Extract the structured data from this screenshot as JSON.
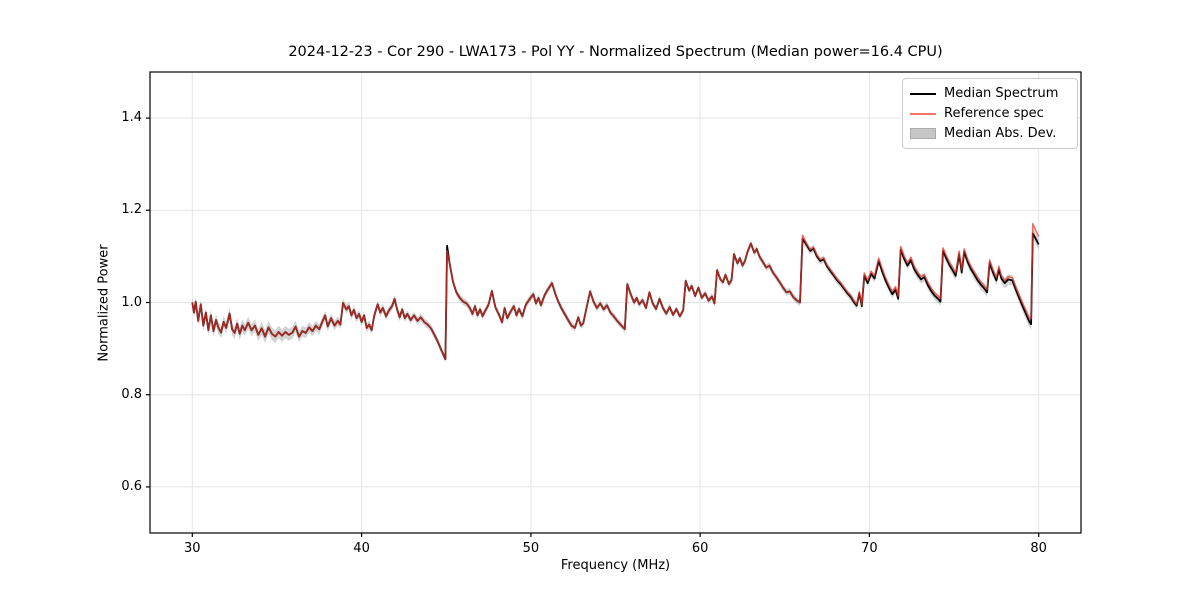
{
  "figure": {
    "background": "#ffffff"
  },
  "chart_data": {
    "type": "line",
    "title": "2024-12-23 - Cor 290 - LWA173 - Pol YY - Normalized Spectrum (Median power=16.4 CPU)",
    "xlabel": "Frequency (MHz)",
    "ylabel": "Normalized Power",
    "xlim": [
      27.5,
      82.5
    ],
    "ylim": [
      0.5,
      1.5
    ],
    "grid": true,
    "grid_color": "#e5e5e5",
    "legend_position": "upper right",
    "xticks": [
      [
        30,
        "30"
      ],
      [
        40,
        "40"
      ],
      [
        50,
        "50"
      ],
      [
        60,
        "60"
      ],
      [
        70,
        "70"
      ],
      [
        80,
        "80"
      ]
    ],
    "yticks": [
      [
        0.6,
        "0.6"
      ],
      [
        0.8,
        "0.8"
      ],
      [
        1.0,
        "1.0"
      ],
      [
        1.2,
        "1.2"
      ],
      [
        1.4,
        "1.4"
      ]
    ],
    "legend": [
      {
        "label": "Median Spectrum",
        "kind": "line",
        "color": "#000000"
      },
      {
        "label": "Reference spec",
        "kind": "line",
        "color": "#f4756d"
      },
      {
        "label": "Median Abs. Dev.",
        "kind": "patch",
        "color": "#c6c6c6"
      }
    ],
    "series_info": {
      "median_color": "#000000",
      "reference_color_rgba": "rgba(230,55,45,0.72)",
      "band_fill_rgba": "rgba(128,128,128,0.35)"
    },
    "points_format": [
      "freq_MHz",
      "median_power",
      "reference_minus_median"
    ],
    "points": [
      [
        30.0,
        1.0
      ],
      [
        30.1,
        0.978
      ],
      [
        30.2,
        1.002
      ],
      [
        30.35,
        0.96
      ],
      [
        30.5,
        0.996
      ],
      [
        30.65,
        0.95
      ],
      [
        30.8,
        0.978
      ],
      [
        30.95,
        0.94
      ],
      [
        31.1,
        0.972
      ],
      [
        31.25,
        0.938
      ],
      [
        31.4,
        0.962
      ],
      [
        31.55,
        0.944
      ],
      [
        31.7,
        0.935
      ],
      [
        31.85,
        0.958
      ],
      [
        32.0,
        0.945
      ],
      [
        32.2,
        0.976
      ],
      [
        32.35,
        0.942
      ],
      [
        32.5,
        0.934
      ],
      [
        32.65,
        0.954
      ],
      [
        32.8,
        0.932
      ],
      [
        32.95,
        0.95
      ],
      [
        33.1,
        0.94
      ],
      [
        33.3,
        0.956
      ],
      [
        33.5,
        0.94
      ],
      [
        33.7,
        0.95
      ],
      [
        33.9,
        0.93
      ],
      [
        34.1,
        0.944
      ],
      [
        34.3,
        0.926
      ],
      [
        34.5,
        0.946
      ],
      [
        34.7,
        0.932
      ],
      [
        34.9,
        0.926
      ],
      [
        35.1,
        0.936
      ],
      [
        35.3,
        0.928
      ],
      [
        35.5,
        0.936
      ],
      [
        35.7,
        0.93
      ],
      [
        35.9,
        0.934
      ],
      [
        36.1,
        0.948
      ],
      [
        36.3,
        0.926
      ],
      [
        36.5,
        0.938
      ],
      [
        36.7,
        0.934
      ],
      [
        36.9,
        0.946
      ],
      [
        37.1,
        0.938
      ],
      [
        37.3,
        0.95
      ],
      [
        37.5,
        0.942
      ],
      [
        37.7,
        0.96
      ],
      [
        37.85,
        0.972
      ],
      [
        38.0,
        0.948
      ],
      [
        38.2,
        0.966
      ],
      [
        38.4,
        0.95
      ],
      [
        38.6,
        0.96
      ],
      [
        38.75,
        0.952
      ],
      [
        38.9,
        0.999
      ],
      [
        39.1,
        0.985
      ],
      [
        39.25,
        0.992
      ],
      [
        39.4,
        0.972
      ],
      [
        39.55,
        0.984
      ],
      [
        39.7,
        0.966
      ],
      [
        39.85,
        0.975
      ],
      [
        40.0,
        0.958
      ],
      [
        40.15,
        0.972
      ],
      [
        40.3,
        0.945
      ],
      [
        40.45,
        0.952
      ],
      [
        40.6,
        0.94
      ],
      [
        40.75,
        0.972
      ],
      [
        40.95,
        0.996
      ],
      [
        41.1,
        0.978
      ],
      [
        41.25,
        0.988
      ],
      [
        41.45,
        0.97
      ],
      [
        41.6,
        0.982
      ],
      [
        41.8,
        0.992
      ],
      [
        41.95,
        1.008
      ],
      [
        42.1,
        0.985
      ],
      [
        42.25,
        0.968
      ],
      [
        42.4,
        0.985
      ],
      [
        42.55,
        0.966
      ],
      [
        42.7,
        0.975
      ],
      [
        42.9,
        0.962
      ],
      [
        43.1,
        0.972
      ],
      [
        43.3,
        0.96
      ],
      [
        43.5,
        0.968
      ],
      [
        43.7,
        0.958
      ],
      [
        43.9,
        0.952
      ],
      [
        44.1,
        0.944
      ],
      [
        44.3,
        0.93
      ],
      [
        44.5,
        0.915
      ],
      [
        44.7,
        0.898
      ],
      [
        44.95,
        0.877
      ],
      [
        45.05,
        1.123,
        -0.011
      ],
      [
        45.2,
        1.085
      ],
      [
        45.4,
        1.045
      ],
      [
        45.6,
        1.022
      ],
      [
        45.8,
        1.01
      ],
      [
        46.0,
        1.002
      ],
      [
        46.2,
        0.998
      ],
      [
        46.4,
        0.988
      ],
      [
        46.55,
        0.975
      ],
      [
        46.7,
        0.992
      ],
      [
        46.85,
        0.972
      ],
      [
        47.0,
        0.985
      ],
      [
        47.15,
        0.97
      ],
      [
        47.3,
        0.982
      ],
      [
        47.5,
        0.995
      ],
      [
        47.7,
        1.025
      ],
      [
        47.9,
        0.99
      ],
      [
        48.1,
        0.975
      ],
      [
        48.3,
        0.957
      ],
      [
        48.45,
        0.988
      ],
      [
        48.6,
        0.966
      ],
      [
        48.8,
        0.98
      ],
      [
        49.0,
        0.992
      ],
      [
        49.15,
        0.972
      ],
      [
        49.3,
        0.986
      ],
      [
        49.5,
        0.97
      ],
      [
        49.7,
        0.995
      ],
      [
        49.9,
        1.006
      ],
      [
        50.15,
        1.018
      ],
      [
        50.3,
        0.998
      ],
      [
        50.45,
        1.01
      ],
      [
        50.6,
        0.994
      ],
      [
        50.8,
        1.015
      ],
      [
        51.0,
        1.028
      ],
      [
        51.25,
        1.042
      ],
      [
        51.45,
        1.018
      ],
      [
        51.6,
        1.004
      ],
      [
        51.8,
        0.988
      ],
      [
        52.0,
        0.975
      ],
      [
        52.2,
        0.962
      ],
      [
        52.4,
        0.95
      ],
      [
        52.6,
        0.945
      ],
      [
        52.8,
        0.968
      ],
      [
        52.95,
        0.95
      ],
      [
        53.1,
        0.955
      ],
      [
        53.3,
        0.99
      ],
      [
        53.5,
        1.024
      ],
      [
        53.7,
        1.002
      ],
      [
        53.9,
        0.988
      ],
      [
        54.1,
        0.998
      ],
      [
        54.3,
        0.985
      ],
      [
        54.5,
        0.994
      ],
      [
        54.7,
        0.978
      ],
      [
        54.9,
        0.97
      ],
      [
        55.1,
        0.96
      ],
      [
        55.3,
        0.952
      ],
      [
        55.55,
        0.942
      ],
      [
        55.7,
        1.04
      ],
      [
        55.9,
        1.018
      ],
      [
        56.1,
        1.0
      ],
      [
        56.25,
        1.01
      ],
      [
        56.4,
        0.996
      ],
      [
        56.6,
        1.005
      ],
      [
        56.8,
        0.988
      ],
      [
        57.0,
        1.022
      ],
      [
        57.2,
        0.998
      ],
      [
        57.4,
        0.986
      ],
      [
        57.6,
        1.008
      ],
      [
        57.8,
        0.988
      ],
      [
        58.0,
        0.976
      ],
      [
        58.2,
        0.99
      ],
      [
        58.4,
        0.973
      ],
      [
        58.6,
        0.986
      ],
      [
        58.8,
        0.97
      ],
      [
        59.0,
        0.983
      ],
      [
        59.15,
        1.047
      ],
      [
        59.35,
        1.026
      ],
      [
        59.5,
        1.036
      ],
      [
        59.7,
        1.014
      ],
      [
        59.9,
        1.032
      ],
      [
        60.1,
        1.01
      ],
      [
        60.3,
        1.02
      ],
      [
        60.5,
        1.004
      ],
      [
        60.7,
        1.013
      ],
      [
        60.85,
        0.998
      ],
      [
        61.0,
        1.07
      ],
      [
        61.2,
        1.05
      ],
      [
        61.35,
        1.044
      ],
      [
        61.5,
        1.06
      ],
      [
        61.7,
        1.04
      ],
      [
        61.85,
        1.048
      ],
      [
        62.0,
        1.105
      ],
      [
        62.2,
        1.085
      ],
      [
        62.35,
        1.096
      ],
      [
        62.5,
        1.08
      ],
      [
        62.65,
        1.09
      ],
      [
        62.8,
        1.11
      ],
      [
        63.0,
        1.128
      ],
      [
        63.2,
        1.108
      ],
      [
        63.35,
        1.116
      ],
      [
        63.5,
        1.1
      ],
      [
        63.7,
        1.088
      ],
      [
        63.9,
        1.076
      ],
      [
        64.1,
        1.08
      ],
      [
        64.3,
        1.065
      ],
      [
        64.5,
        1.055
      ],
      [
        64.7,
        1.044
      ],
      [
        64.9,
        1.032
      ],
      [
        65.1,
        1.022
      ],
      [
        65.3,
        1.024
      ],
      [
        65.5,
        1.012
      ],
      [
        65.7,
        1.005
      ],
      [
        65.9,
        1.0
      ],
      [
        66.05,
        1.138,
        0.008
      ],
      [
        66.3,
        1.124,
        0.003
      ],
      [
        66.5,
        1.112,
        0.003
      ],
      [
        66.7,
        1.117,
        0.003
      ],
      [
        66.9,
        1.1,
        0.003
      ],
      [
        67.1,
        1.09,
        0.003
      ],
      [
        67.3,
        1.094,
        0.003
      ],
      [
        67.5,
        1.078,
        0.003
      ],
      [
        67.7,
        1.068,
        0.003
      ],
      [
        67.9,
        1.058,
        0.003
      ],
      [
        68.1,
        1.048,
        0.003
      ],
      [
        68.3,
        1.04,
        0.003
      ],
      [
        68.5,
        1.03,
        0.003
      ],
      [
        68.7,
        1.02,
        0.003
      ],
      [
        68.9,
        1.012,
        0.003
      ],
      [
        69.1,
        1.0,
        0.003
      ],
      [
        69.25,
        0.993,
        0.003
      ],
      [
        69.4,
        1.02,
        0.003
      ],
      [
        69.55,
        0.992,
        0.003
      ],
      [
        69.7,
        1.058,
        0.006
      ],
      [
        69.9,
        1.042,
        0.006
      ],
      [
        70.1,
        1.062,
        0.006
      ],
      [
        70.3,
        1.052,
        0.006
      ],
      [
        70.55,
        1.09,
        0.006
      ],
      [
        70.75,
        1.068,
        0.006
      ],
      [
        70.95,
        1.048,
        0.006
      ],
      [
        71.15,
        1.032,
        0.006
      ],
      [
        71.35,
        1.018,
        0.006
      ],
      [
        71.55,
        1.028,
        0.006
      ],
      [
        71.7,
        1.008,
        0.006
      ],
      [
        71.85,
        1.115,
        0.006
      ],
      [
        72.05,
        1.095,
        0.006
      ],
      [
        72.25,
        1.08,
        0.006
      ],
      [
        72.45,
        1.092,
        0.006
      ],
      [
        72.65,
        1.072,
        0.006
      ],
      [
        72.85,
        1.06,
        0.006
      ],
      [
        73.05,
        1.05,
        0.006
      ],
      [
        73.25,
        1.055,
        0.006
      ],
      [
        73.45,
        1.038,
        0.006
      ],
      [
        73.65,
        1.025,
        0.006
      ],
      [
        73.85,
        1.015,
        0.006
      ],
      [
        74.05,
        1.008,
        0.006
      ],
      [
        74.2,
        1.002,
        0.006
      ],
      [
        74.35,
        1.112,
        0.006
      ],
      [
        74.55,
        1.095,
        0.006
      ],
      [
        74.75,
        1.08,
        0.006
      ],
      [
        74.95,
        1.068,
        0.006
      ],
      [
        75.1,
        1.058,
        0.006
      ],
      [
        75.3,
        1.105,
        0.006
      ],
      [
        75.45,
        1.065,
        0.006
      ],
      [
        75.6,
        1.11,
        0.006
      ],
      [
        75.8,
        1.088,
        0.006
      ],
      [
        76.0,
        1.072,
        0.006
      ],
      [
        76.2,
        1.06,
        0.006
      ],
      [
        76.4,
        1.048,
        0.006
      ],
      [
        76.6,
        1.038,
        0.006
      ],
      [
        76.8,
        1.03,
        0.006
      ],
      [
        76.95,
        1.022,
        0.006
      ],
      [
        77.1,
        1.086,
        0.006
      ],
      [
        77.3,
        1.065,
        0.006
      ],
      [
        77.5,
        1.048,
        0.006
      ],
      [
        77.65,
        1.072,
        0.006
      ],
      [
        77.8,
        1.052,
        0.006
      ],
      [
        78.0,
        1.042,
        0.006
      ],
      [
        78.2,
        1.05,
        0.006
      ],
      [
        78.45,
        1.048,
        0.006
      ],
      [
        78.65,
        1.028,
        0.006
      ],
      [
        78.85,
        1.01,
        0.006
      ],
      [
        79.05,
        0.992,
        0.007
      ],
      [
        79.25,
        0.975,
        0.008
      ],
      [
        79.45,
        0.958,
        0.008
      ],
      [
        79.55,
        0.953,
        0.012
      ],
      [
        79.65,
        1.15,
        0.021
      ],
      [
        79.8,
        1.14,
        0.018
      ],
      [
        80.0,
        1.126,
        0.017
      ]
    ],
    "mad_halfwidth_breakpoints": [
      [
        30,
        0.011
      ],
      [
        32,
        0.013
      ],
      [
        35,
        0.014
      ],
      [
        38,
        0.01
      ],
      [
        44,
        0.008
      ],
      [
        46,
        0.008
      ],
      [
        60,
        0.007
      ],
      [
        70,
        0.008
      ],
      [
        78,
        0.011
      ],
      [
        80,
        0.012
      ]
    ]
  }
}
